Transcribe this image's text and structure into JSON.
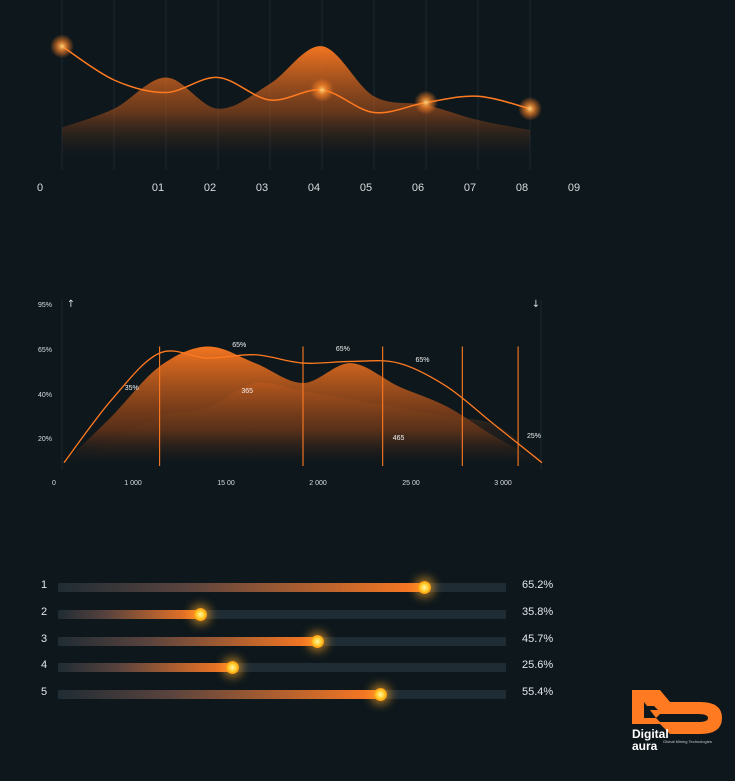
{
  "colors": {
    "background": "#0d171c",
    "accent": "#ff7a21",
    "glow": "#ffc640",
    "text": "#d9dde0"
  },
  "chart_data": [
    {
      "type": "line",
      "title": "",
      "xlabel": "",
      "ylabel": "",
      "categories": [
        "0",
        "01",
        "02",
        "03",
        "04",
        "05",
        "06",
        "07",
        "08",
        "09"
      ],
      "series": [
        {
          "values": [
            95,
            68,
            58,
            70,
            52,
            60,
            42,
            50,
            55,
            45
          ]
        }
      ],
      "area_series": [
        {
          "values": [
            30,
            45,
            70,
            45,
            65,
            95,
            55,
            48,
            36,
            28
          ]
        }
      ],
      "grid": "vertical",
      "legend": "none"
    },
    {
      "type": "area",
      "title": "",
      "xlabel": "",
      "ylabel": "",
      "yticks": [
        "20%",
        "40%",
        "65%",
        "95%"
      ],
      "xticks": [
        "0",
        "1 000",
        "15 00",
        "2 000",
        "25 00",
        "3 000"
      ],
      "xlim": [
        0,
        3000
      ],
      "ylim": [
        0,
        100
      ],
      "series": [
        {
          "values": [
            2,
            40,
            68,
            65,
            67,
            62,
            63,
            62,
            48,
            25,
            2
          ]
        }
      ],
      "area_series": [
        {
          "values": [
            2,
            30,
            60,
            72,
            62,
            50,
            62,
            48,
            36,
            18,
            2
          ]
        },
        {
          "values": [
            0,
            15,
            30,
            35,
            50,
            45,
            40,
            35,
            30,
            25,
            5
          ]
        }
      ],
      "annotations": [
        {
          "label": "35%",
          "x": 450
        },
        {
          "label": "65%",
          "x": 1100
        },
        {
          "label": "365",
          "x": 1150
        },
        {
          "label": "65%",
          "x": 1750
        },
        {
          "label": "465",
          "x": 2100
        },
        {
          "label": "65%",
          "x": 2250
        },
        {
          "label": "25%",
          "x": 2950
        }
      ],
      "markers": [
        {
          "direction": "up",
          "symbol": "↑"
        },
        {
          "direction": "down",
          "symbol": "↓"
        }
      ],
      "legend": "none"
    },
    {
      "type": "bar",
      "orientation": "horizontal",
      "categories": [
        "1",
        "2",
        "3",
        "4",
        "5"
      ],
      "values": [
        65.2,
        35.8,
        45.7,
        25.6,
        55.4
      ],
      "value_labels": [
        "65.2%",
        "35.8%",
        "45.7%",
        "25.6%",
        "55.4%"
      ],
      "fill_fraction": [
        0.82,
        0.32,
        0.58,
        0.39,
        0.72
      ],
      "xlim": [
        0,
        100
      ],
      "legend": "none"
    }
  ],
  "logo": {
    "word1": "Digital",
    "word2": "aura",
    "tagline": "Global Mining Technologies"
  }
}
